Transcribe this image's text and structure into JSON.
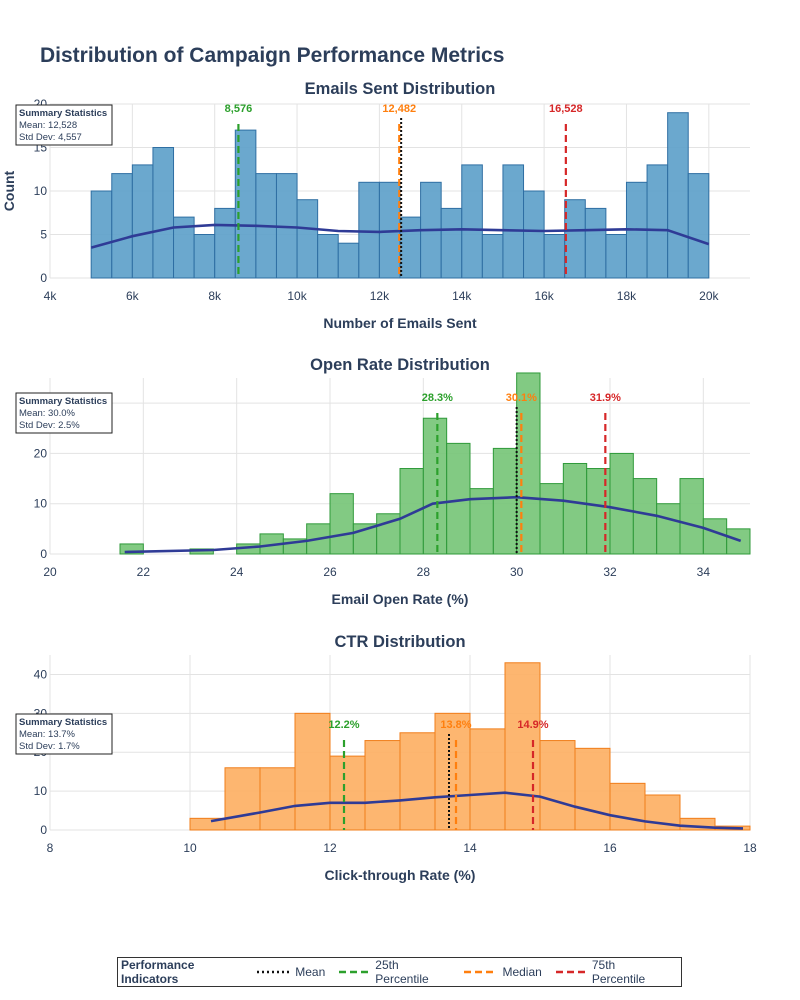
{
  "page": {
    "title": "Distribution of Campaign Performance Metrics"
  },
  "legend": {
    "title": "Performance Indicators",
    "items": [
      {
        "label": "Mean",
        "color": "#111111",
        "dash": "dot"
      },
      {
        "label": "25th Percentile",
        "color": "#2ca02c",
        "dash": "dash"
      },
      {
        "label": "Median",
        "color": "#ff7f0e",
        "dash": "dash"
      },
      {
        "label": "75th Percentile",
        "color": "#d62728",
        "dash": "dash"
      }
    ]
  },
  "chart_data": [
    {
      "type": "bar",
      "title": "Emails Sent Distribution",
      "xlabel": "Number of Emails Sent",
      "ylabel": "Count",
      "xlim": [
        4000,
        21000
      ],
      "ylim": [
        0,
        20
      ],
      "xticks": [
        4000,
        6000,
        8000,
        10000,
        12000,
        14000,
        16000,
        18000,
        20000
      ],
      "xtick_labels": [
        "4k",
        "6k",
        "8k",
        "10k",
        "12k",
        "14k",
        "16k",
        "18k",
        "20k"
      ],
      "yticks": [
        0,
        5,
        10,
        15,
        20
      ],
      "ytick_labels": [
        "0",
        "5",
        "10",
        "15",
        "20"
      ],
      "bin_start": 5000,
      "bin_width": 500,
      "counts": [
        10,
        12,
        13,
        15,
        7,
        5,
        8,
        17,
        12,
        12,
        9,
        5,
        4,
        11,
        11,
        7,
        11,
        8,
        13,
        5,
        13,
        10,
        5,
        9,
        8,
        5,
        11,
        13,
        19,
        12
      ],
      "bar_color": "#5b9ec9",
      "bar_edge": "#2f6fa3",
      "kde": [
        [
          5000,
          3.5
        ],
        [
          6000,
          4.8
        ],
        [
          7000,
          5.8
        ],
        [
          8000,
          6.1
        ],
        [
          9000,
          6.0
        ],
        [
          10000,
          5.8
        ],
        [
          11000,
          5.4
        ],
        [
          12000,
          5.3
        ],
        [
          13000,
          5.5
        ],
        [
          14000,
          5.6
        ],
        [
          15000,
          5.5
        ],
        [
          16000,
          5.4
        ],
        [
          17000,
          5.5
        ],
        [
          18000,
          5.6
        ],
        [
          19000,
          5.5
        ],
        [
          20000,
          3.9
        ]
      ],
      "lines": {
        "mean": 12528,
        "p25": 8576,
        "median": 12482,
        "p75": 16528
      },
      "line_labels": {
        "p25": "8,576",
        "median": "12,482",
        "p75": "16,528"
      },
      "summary": {
        "title": "Summary Statistics",
        "mean": "Mean: 12,528",
        "std": "Std Dev: 4,557"
      }
    },
    {
      "type": "bar",
      "title": "Open Rate Distribution",
      "xlabel": "Email Open Rate (%)",
      "ylabel": "",
      "xlim": [
        20,
        35
      ],
      "ylim": [
        0,
        35
      ],
      "xticks": [
        20,
        22,
        24,
        26,
        28,
        30,
        32,
        34
      ],
      "xtick_labels": [
        "20",
        "22",
        "24",
        "26",
        "28",
        "30",
        "32",
        "34"
      ],
      "yticks": [
        0,
        10,
        20,
        30
      ],
      "ytick_labels": [
        "0",
        "10",
        "20",
        "30"
      ],
      "bin_start": 21.5,
      "bin_width": 0.5,
      "counts": [
        2,
        0,
        0,
        1,
        0,
        2,
        4,
        3,
        6,
        12,
        6,
        8,
        17,
        27,
        22,
        13,
        21,
        36,
        14,
        18,
        17,
        20,
        15,
        10,
        15,
        7,
        5
      ],
      "bar_color": "#74c476",
      "bar_edge": "#2f9a3a",
      "kde": [
        [
          21.6,
          0.4
        ],
        [
          23.5,
          0.8
        ],
        [
          24.5,
          1.5
        ],
        [
          25.5,
          2.6
        ],
        [
          26.5,
          4.2
        ],
        [
          27.5,
          7.0
        ],
        [
          28.2,
          10.0
        ],
        [
          29,
          10.9
        ],
        [
          30,
          11.3
        ],
        [
          31,
          10.6
        ],
        [
          32,
          9.3
        ],
        [
          33,
          7.6
        ],
        [
          34,
          5.2
        ],
        [
          34.8,
          2.6
        ]
      ],
      "lines": {
        "mean": 30.0,
        "p25": 28.3,
        "median": 30.1,
        "p75": 31.9
      },
      "line_labels": {
        "p25": "28.3%",
        "median": "30.1%",
        "p75": "31.9%"
      },
      "summary": {
        "title": "Summary Statistics",
        "mean": "Mean: 30.0%",
        "std": "Std Dev: 2.5%"
      }
    },
    {
      "type": "bar",
      "title": "CTR Distribution",
      "xlabel": "Click-through Rate (%)",
      "ylabel": "",
      "xlim": [
        8,
        18
      ],
      "ylim": [
        0,
        45
      ],
      "xticks": [
        8,
        10,
        12,
        14,
        16,
        18
      ],
      "xtick_labels": [
        "8",
        "10",
        "12",
        "14",
        "16",
        "18"
      ],
      "yticks": [
        0,
        10,
        20,
        30,
        40
      ],
      "ytick_labels": [
        "0",
        "10",
        "20",
        "30",
        "40"
      ],
      "bin_start": 10,
      "bin_width": 0.5,
      "counts": [
        3,
        16,
        16,
        30,
        19,
        23,
        25,
        30,
        26,
        43,
        23,
        21,
        12,
        9,
        3,
        1
      ],
      "bar_color": "#fdae61",
      "bar_edge": "#f07d1a",
      "kde": [
        [
          10.3,
          2.3
        ],
        [
          11,
          4.5
        ],
        [
          11.5,
          6.2
        ],
        [
          12,
          7.0
        ],
        [
          12.5,
          7.0
        ],
        [
          13,
          7.6
        ],
        [
          13.5,
          8.4
        ],
        [
          14,
          9.0
        ],
        [
          14.5,
          9.6
        ],
        [
          15,
          8.6
        ],
        [
          15.5,
          6.0
        ],
        [
          16,
          3.8
        ],
        [
          16.5,
          2.2
        ],
        [
          17,
          1.1
        ],
        [
          17.5,
          0.6
        ],
        [
          17.9,
          0.4
        ]
      ],
      "lines": {
        "mean": 13.7,
        "p25": 12.2,
        "median": 13.8,
        "p75": 14.9
      },
      "line_labels": {
        "p25": "12.2%",
        "median": "13.8%",
        "p75": "14.9%"
      },
      "summary": {
        "title": "Summary Statistics",
        "mean": "Mean: 13.7%",
        "std": "Std Dev: 1.7%"
      }
    }
  ]
}
